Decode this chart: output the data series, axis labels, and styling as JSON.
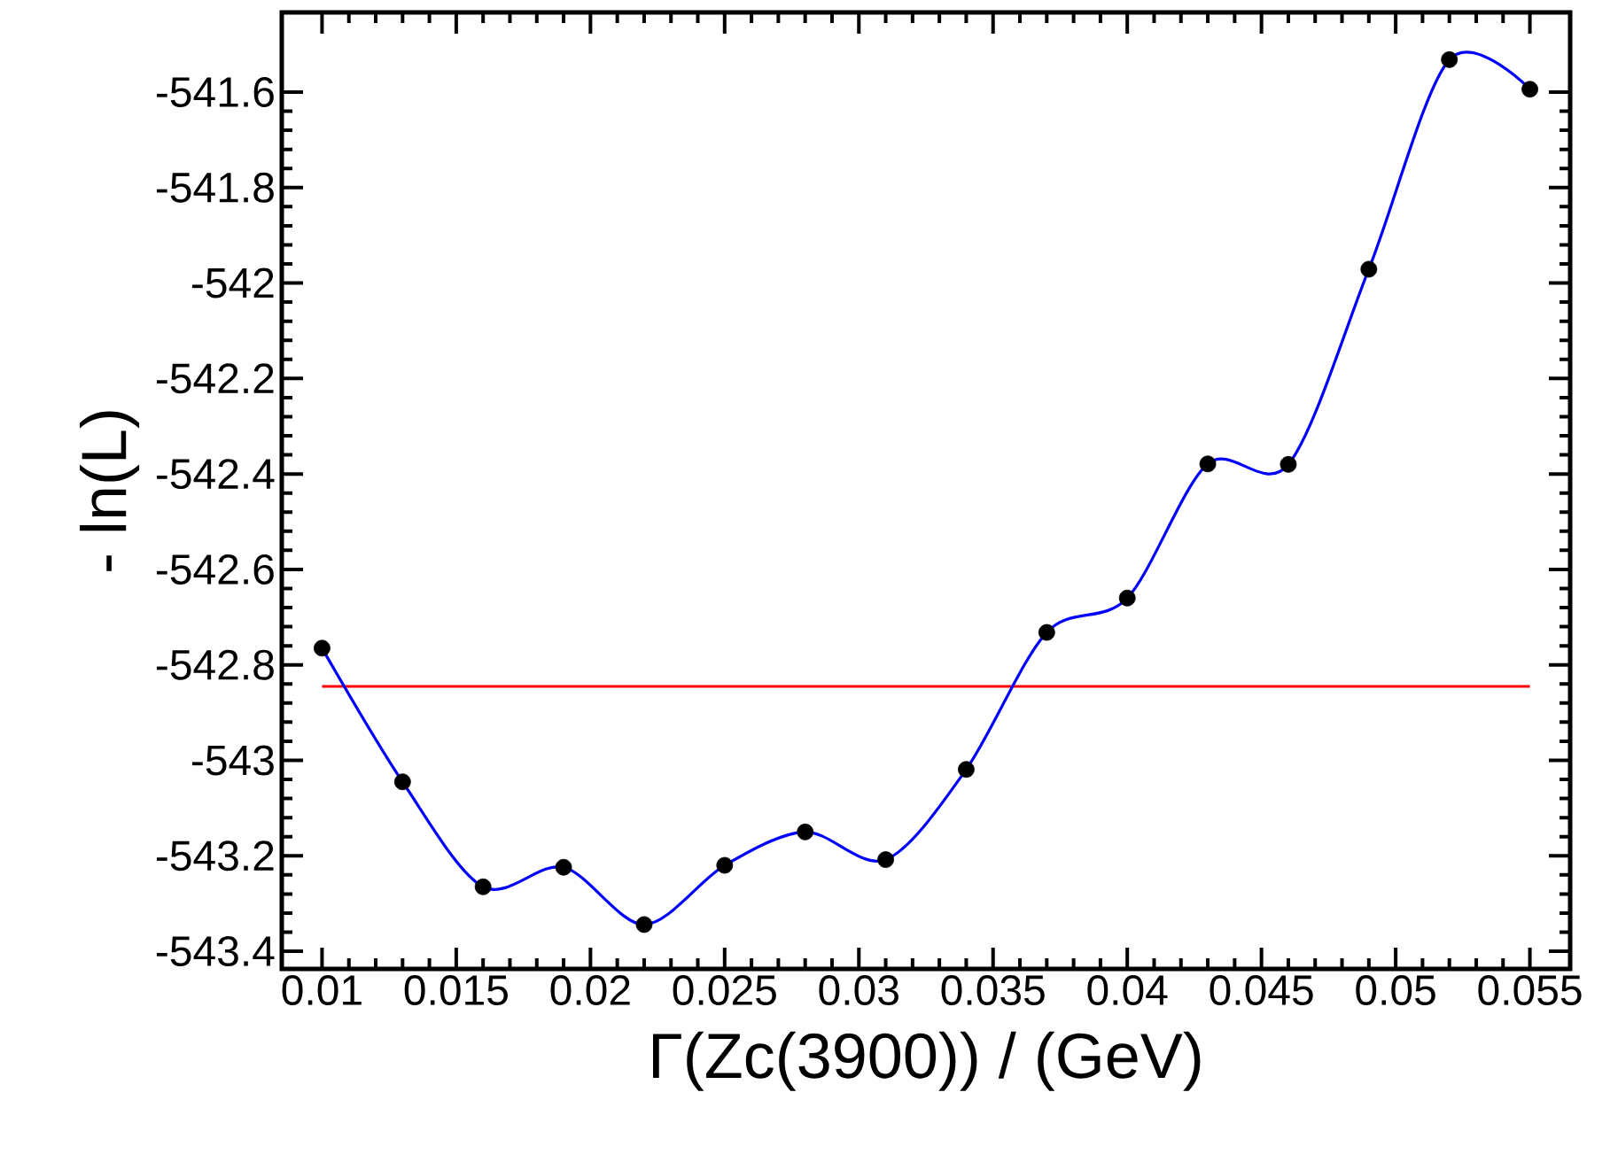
{
  "chart_data": {
    "type": "line",
    "xlabel": "Γ(Zc(3900)) / (GeV)",
    "ylabel": "- ln(L)",
    "x": [
      0.01,
      0.013,
      0.016,
      0.019,
      0.022,
      0.025,
      0.028,
      0.031,
      0.034,
      0.037,
      0.04,
      0.043,
      0.046,
      0.049,
      0.052,
      0.055
    ],
    "series": [
      {
        "color": "#0000ff",
        "values": [
          -542.765,
          -543.045,
          -543.265,
          -543.224,
          -543.344,
          -543.22,
          -543.15,
          -543.208,
          -543.019,
          -542.732,
          -542.66,
          -542.379,
          -542.38,
          -541.971,
          -541.532,
          -541.594
        ]
      }
    ],
    "marker": "circle",
    "xlim": [
      0.0085,
      0.0565
    ],
    "ylim": [
      -543.437,
      -541.433
    ],
    "xticks": [
      0.01,
      0.015,
      0.02,
      0.025,
      0.03,
      0.035,
      0.04,
      0.045,
      0.05,
      0.055
    ],
    "yticks": [
      -543.4,
      -543.2,
      -543,
      -542.8,
      -542.6,
      -542.4,
      -542.2,
      -542,
      -541.8,
      -541.6
    ],
    "ref_lines": [
      {
        "axis": "y",
        "value": -542.845,
        "color": "#ff0000"
      }
    ]
  }
}
